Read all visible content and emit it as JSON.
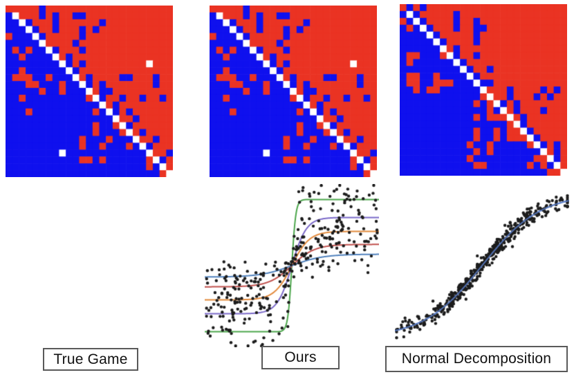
{
  "page": {
    "background": "#ffffff"
  },
  "labels": {
    "true_game": "True Game",
    "ours": "Ours",
    "normal": "Normal Decomposition"
  },
  "colors": {
    "matrix_positive_red": "#ea3323",
    "matrix_negative_blue": "#0f10ee",
    "matrix_zero_white": "#ffffff",
    "scatter_dot": "#1c1c1c",
    "box_border": "#595959"
  },
  "chart_data": [
    {
      "type": "heatmap",
      "title": "True Game",
      "rows": 25,
      "cols": 25,
      "cell_encoding": {
        "R": "#ea3323",
        "B": "#0f10ee",
        "W": "#ffffff"
      },
      "grid": [
        "RRRRRBRRRRRRRRRRRRRRRRRRR",
        "BWRRRBRBRRBBRRRRRRRRRRRRR",
        "BBWBRRRBRRRRRRBRRRRRRRRRR",
        "BBBWBRRBRRRBRBRRRRRRRRRRR",
        "RBBBWBRRRRRBRRRRRRRRRRRRR",
        "BBBBBWRRRRBRRRRRRRRRRRRRR",
        "BRBRBBWBRRRBRRRRRRRRRRRRR",
        "BBRBBBBWRBRRRRRRRRRRRRRRR",
        "BBBBBBBBWBRBRRRRRRRRRWRRR",
        "BBRBBBBBBWBRRRRRRRRRRRRRR",
        "BRRRBBRBBBWRBRRRRBBRRRBRR",
        "BBBRRBBBRBBWBRBRRRRRRRBRR",
        "BBBBBRBBRBBBWRBBRRRRRRRRR",
        "BBRBBBBBBBBBRWBRRBRRBRRBR",
        "BBBBBBBBBBBBBBWRBRRRRRRRR",
        "BBBRBBBBBBBBBRBWBRBRRRRRR",
        "BBBBBBBBBBBBBBBBWRRBRRRRR",
        "BBBBBBBBBBBBBRBBRWBRRRRRR",
        "BBBBBBBBBBBBBRBBBRWRBRRRR",
        "BBBBBBBBBBBRBBBRBBBWRRBRR",
        "BBBBBBBBBBBRBBRBBBRBWBRRR",
        "BBBBBBBBWBBBBBBBBBBBBWRRB",
        "BBBBBBBBBBBRRBRBBBBBBRWBR",
        "BBBBBBBBBBBBBBBBBBBBBRBWR",
        "BBBBBBBBBBBBBBBBBBBBBBBRW"
      ]
    },
    {
      "type": "heatmap",
      "title": "Ours",
      "rows": 25,
      "cols": 25,
      "cell_encoding": {
        "R": "#ea3323",
        "B": "#0f10ee",
        "W": "#ffffff"
      },
      "grid": [
        "RRRRRBRRRRRRRRRRRRRRRRRRR",
        "BWRRRBRBRRBBRRRRRRRRRRRRR",
        "BBWBRRRBRRRRRRBRRRRRRRRRR",
        "BBBWBRRBRRRBRBRRRRRRRRRRR",
        "RBBBWBRRRRRBRRRRRRRRRRRRR",
        "BBBBBWRRRRBRRRRRRRRRRRRRR",
        "BRBRBBWBRRRBRRRRRRRRRRRRR",
        "BBRBBBBWRBRRRRRRRRRRRRRRR",
        "BBBBBBBBWBRBRRRRRRRRRWRRR",
        "BBRBBBBBBWBRRRRRRRRRRRRRR",
        "BRRRBBRBBBWRBRRRRBBRRRBRR",
        "BBBRRBBBRBBWBRBRRRRRRRBRR",
        "BBBBBRBBRBBBWRBBRRRRRRRRR",
        "BBRBBBBBBBBBRWBRRBRRBRRBR",
        "BBBBBBBBBBBBBBWRBRRRRRRRR",
        "BBBRBBBBBBBBBRBWBRBRRRRRR",
        "BBBBBBBBBBBBBBBBWRRBRRRRR",
        "BBBBBBBBBBBBBRBBRWBRRRRRR",
        "BBBBBBBBBBBBBRBBBRWRBRRRR",
        "BBBBBBBBBBBRBBBRBBBWRRBRR",
        "BBBBBBBBBBBRBBRBBBRBWBRRR",
        "BBBBBBBBWBBBBBBBBBBBBWRRB",
        "BBBBBBBBBBBRRBRBBBBBBRWBR",
        "BBBBBBBBBBBBBBBBBBBBBRBWR",
        "BBBBBBBBBBBBBBBBBBBBBBBRW"
      ]
    },
    {
      "type": "heatmap",
      "title": "Normal Decomposition",
      "rows": 25,
      "cols": 25,
      "cell_encoding": {
        "R": "#ea3323",
        "B": "#0f10ee",
        "W": "#ffffff"
      },
      "grid": [
        "RBRBRRRRRRRRRRRRRRRRRRRRR",
        "BWBRRRRRBRRRRRRRRRRRRRRRR",
        "RBWBRRRRBRRBRRRRRRRRRRRRR",
        "BRBWBRRRBRRBBRRRRRRRRRRRR",
        "BBBBWBRRRRRBRRRRRRRRRRRRR",
        "BBBBBWBRRRRBRRRRRRRRRRRRR",
        "BBBBBBWRBRRRRRRRRRRRRRRRR",
        "BRRBBBRWBRRBRRRRRRRRRRRRR",
        "BRBBBBBBWBRRRRRRRRRRRRRRR",
        "BBBBBBBBBWBRRBRRRRRRRRRRR",
        "BRRBBRBBBBWBRRRRRRRRRRRRR",
        "BRRBBRRRBBBWBBRRRRRRRRRRR",
        "BBRBRRBBBBBBWRRRBRRRRBRBR",
        "BBBBBBBBBBBBRWRRBRRRBRBRR",
        "BBBBBBBBBBBRBRWBRBRRRRRRR",
        "BBBBBBBBBBBBBRBWRBRRRBRRR",
        "BBBBBBBBBBBRBRRRWRBRRRRRR",
        "BBBBBBBBBBBBBBBBRWBRRRRRR",
        "BBBBBBBBBBBRBBRBRRWBRRRRR",
        "BBBBBBBBBBBRBBRBRRRWBRRRR",
        "BBBBBBBBBBRBBRBBBBBRWBRBR",
        "BBBBBBBBBBBRBRBBBBBBBWRBR",
        "BBBBBBBBBBRBBBBBBBBBRRWBR",
        "BBBBBBBBBBBRRBBBBBBRBRBWR",
        "BBBBBBBBBBBBBBBBBBBBBBRRW"
      ]
    },
    {
      "type": "scatter",
      "title": "Ours payoff fit",
      "x_range": [
        -1,
        1
      ],
      "y_range": [
        -1,
        1
      ],
      "grid": "off",
      "axes": "hidden",
      "curve_model": "y = amplitude * tanh(steepness * x)",
      "curves": [
        {
          "name": "green-curve",
          "color": "#4ba64b",
          "amplitude": 0.81,
          "steepness": 22.0
        },
        {
          "name": "purple-curve",
          "color": "#7a68c8",
          "amplitude": 0.59,
          "steepness": 6.0
        },
        {
          "name": "orange-curve",
          "color": "#e2893b",
          "amplitude": 0.42,
          "steepness": 5.0
        },
        {
          "name": "red-curve",
          "color": "#c0504d",
          "amplitude": 0.26,
          "steepness": 3.8
        },
        {
          "name": "blue-curve",
          "color": "#4f81bd",
          "amplitude": 0.14,
          "steepness": 2.8
        }
      ],
      "points": {
        "color": "#1c1c1c",
        "count": 340,
        "radius": 2.2,
        "noise_sigma": 0.11,
        "seed": 7,
        "x_distribution": "uniform"
      }
    },
    {
      "type": "scatter",
      "title": "Normal Decomposition payoff fit",
      "x_range": [
        -1,
        1
      ],
      "y_range": [
        -1,
        1
      ],
      "grid": "off",
      "axes": "hidden",
      "curve_model": "y = amplitude * tanh(steepness * x)",
      "curves": [
        {
          "name": "blue-curve",
          "color": "#5b7ec9",
          "amplitude": 0.88,
          "steepness": 1.5
        }
      ],
      "points": {
        "color": "#1c1c1c",
        "count": 460,
        "radius": 2.2,
        "noise_sigma": 0.055,
        "seed": 11,
        "x_distribution": "center-weighted"
      }
    }
  ]
}
